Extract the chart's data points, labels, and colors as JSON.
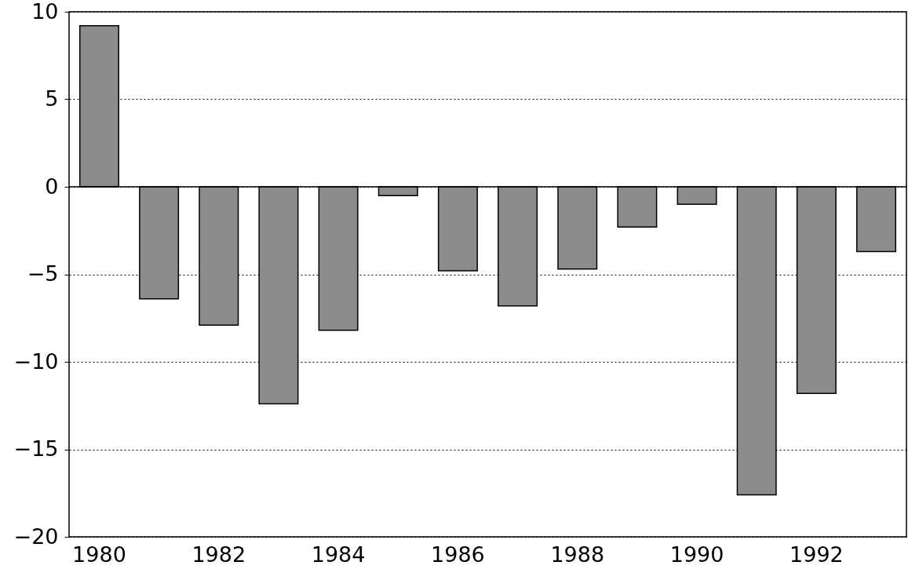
{
  "chart_data": {
    "type": "bar",
    "categories": [
      "1980",
      null,
      "1982",
      null,
      "1984",
      null,
      "1986",
      null,
      "1988",
      null,
      "1990",
      null,
      "1992",
      null
    ],
    "values": [
      9.2,
      -6.4,
      -7.9,
      -12.4,
      -8.2,
      -0.5,
      -4.8,
      -6.8,
      -4.7,
      -2.3,
      -1.0,
      -17.6,
      -11.8,
      -3.7
    ],
    "color": "#8c8c8c",
    "ylim": [
      -20,
      10
    ],
    "yticks": [
      -20,
      -15,
      -10,
      -5,
      0,
      5,
      10
    ],
    "grid": "y",
    "line_style": "dotted",
    "ref_lines": [
      {
        "axis": "y",
        "value": 0,
        "color": "#000000",
        "line_style": "solid"
      }
    ]
  }
}
